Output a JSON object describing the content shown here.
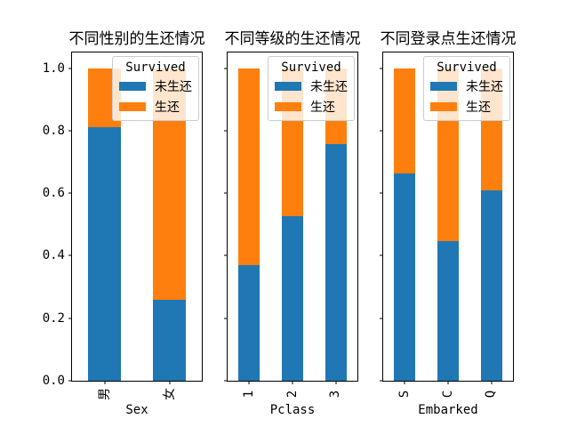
{
  "figure_background": "#ffffff",
  "legend": {
    "title": "Survived",
    "entries": [
      {
        "key": "not-survived",
        "label": "未生还",
        "color": "#1f77b4"
      },
      {
        "key": "survived",
        "label": "生还",
        "color": "#ff7f0e"
      }
    ]
  },
  "chart_data": [
    {
      "id": "sex",
      "type": "bar",
      "stacked": true,
      "title": "不同性别的生还情况",
      "xlabel": "Sex",
      "ylabel": "",
      "categories": [
        "男",
        "女"
      ],
      "series": [
        {
          "name": "未生还",
          "color": "#1f77b4",
          "values": [
            0.811,
            0.258
          ]
        },
        {
          "name": "生还",
          "color": "#ff7f0e",
          "values": [
            0.189,
            0.742
          ]
        }
      ],
      "ylim": [
        0,
        1.05
      ],
      "grid": false,
      "legend_position": "upper right",
      "ytick_values": [
        0.0,
        0.2,
        0.4,
        0.6,
        0.8,
        1.0
      ],
      "ytick_labels": [
        "0.0",
        "0.2",
        "0.4",
        "0.6",
        "0.8",
        "1.0"
      ]
    },
    {
      "id": "pclass",
      "type": "bar",
      "stacked": true,
      "title": "不同等级的生还情况",
      "xlabel": "Pclass",
      "ylabel": "",
      "categories": [
        "1",
        "2",
        "3"
      ],
      "series": [
        {
          "name": "未生还",
          "color": "#1f77b4",
          "values": [
            0.37,
            0.527,
            0.758
          ]
        },
        {
          "name": "生还",
          "color": "#ff7f0e",
          "values": [
            0.63,
            0.473,
            0.242
          ]
        }
      ],
      "ylim": [
        0,
        1.05
      ],
      "grid": false,
      "legend_position": "upper right",
      "ytick_values": [
        0.0,
        0.2,
        0.4,
        0.6,
        0.8,
        1.0
      ],
      "ytick_labels": null
    },
    {
      "id": "embarked",
      "type": "bar",
      "stacked": true,
      "title": "不同登录点生还情况",
      "xlabel": "Embarked",
      "ylabel": "",
      "categories": [
        "S",
        "C",
        "Q"
      ],
      "series": [
        {
          "name": "未生还",
          "color": "#1f77b4",
          "values": [
            0.663,
            0.446,
            0.61
          ]
        },
        {
          "name": "生还",
          "color": "#ff7f0e",
          "values": [
            0.337,
            0.554,
            0.39
          ]
        }
      ],
      "ylim": [
        0,
        1.05
      ],
      "grid": false,
      "legend_position": "upper right",
      "ytick_values": [
        0.0,
        0.2,
        0.4,
        0.6,
        0.8,
        1.0
      ],
      "ytick_labels": null
    }
  ]
}
